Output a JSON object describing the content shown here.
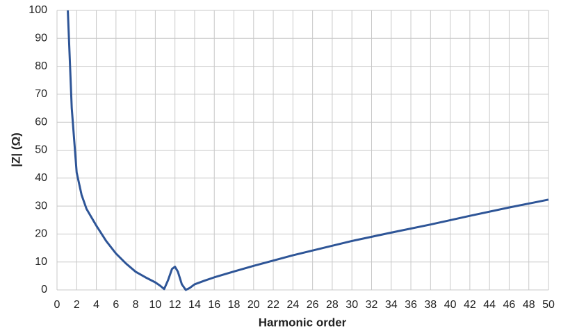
{
  "chart_data": {
    "type": "line",
    "xlabel": "Harmonic order",
    "ylabel": "|Z| (Ω)",
    "x": [
      1.1,
      1.5,
      2,
      2.5,
      3,
      3.5,
      4,
      5,
      6,
      7,
      8,
      9,
      10,
      10.5,
      10.9,
      11.3,
      11.7,
      12,
      12.3,
      12.7,
      13.1,
      13.5,
      14,
      15,
      16,
      18,
      20,
      22,
      24,
      26,
      28,
      30,
      34,
      38,
      42,
      46,
      50
    ],
    "series": [
      {
        "color": "#2e5597",
        "values": [
          100,
          65,
          42,
          34,
          29,
          26,
          23,
          17.5,
          13,
          9.5,
          6.5,
          4.5,
          2.7,
          1.5,
          0.3,
          3.5,
          7.5,
          8.3,
          6.5,
          2,
          0,
          0.7,
          2,
          3.3,
          4.5,
          6.6,
          8.6,
          10.5,
          12.4,
          14.1,
          15.8,
          17.5,
          20.5,
          23.4,
          26.5,
          29.5,
          32.3
        ]
      }
    ],
    "xlim": [
      0,
      50
    ],
    "xticks": [
      0,
      2,
      4,
      6,
      8,
      10,
      12,
      14,
      16,
      18,
      20,
      22,
      24,
      26,
      28,
      30,
      32,
      34,
      36,
      38,
      40,
      42,
      44,
      46,
      48,
      50
    ],
    "ylim": [
      0,
      100
    ],
    "yticks": [
      0,
      10,
      20,
      30,
      40,
      50,
      60,
      70,
      80,
      90,
      100
    ],
    "grid": true
  }
}
